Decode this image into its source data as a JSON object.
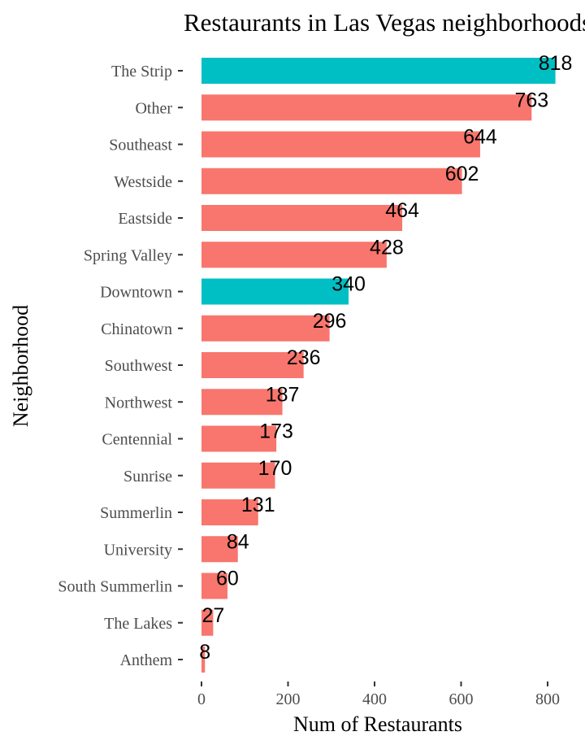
{
  "chart_data": {
    "type": "bar",
    "orientation": "horizontal",
    "title": "Restaurants in Las Vegas neighborhoods",
    "xlabel": "Num of Restaurants",
    "ylabel": "Neighborhood",
    "xlim": [
      0,
      830
    ],
    "x_ticks": [
      0,
      200,
      400,
      600,
      800
    ],
    "grid": false,
    "legend": "none",
    "colors": {
      "default": "#F8766D",
      "highlight": "#00BFC4"
    },
    "categories": [
      "The Strip",
      "Other",
      "Southeast",
      "Westside",
      "Eastside",
      "Spring Valley",
      "Downtown",
      "Chinatown",
      "Southwest",
      "Northwest",
      "Centennial",
      "Sunrise",
      "Summerlin",
      "University",
      "South Summerlin",
      "The Lakes",
      "Anthem"
    ],
    "values": [
      818,
      763,
      644,
      602,
      464,
      428,
      340,
      296,
      236,
      187,
      173,
      170,
      131,
      84,
      60,
      27,
      8
    ],
    "highlighted": [
      "The Strip",
      "Downtown"
    ],
    "data_labels": [
      "818",
      "763",
      "644",
      "602",
      "464",
      "428",
      "340",
      "296",
      "236",
      "187",
      "173",
      "170",
      "131",
      "84",
      "60",
      "27",
      "8"
    ]
  }
}
